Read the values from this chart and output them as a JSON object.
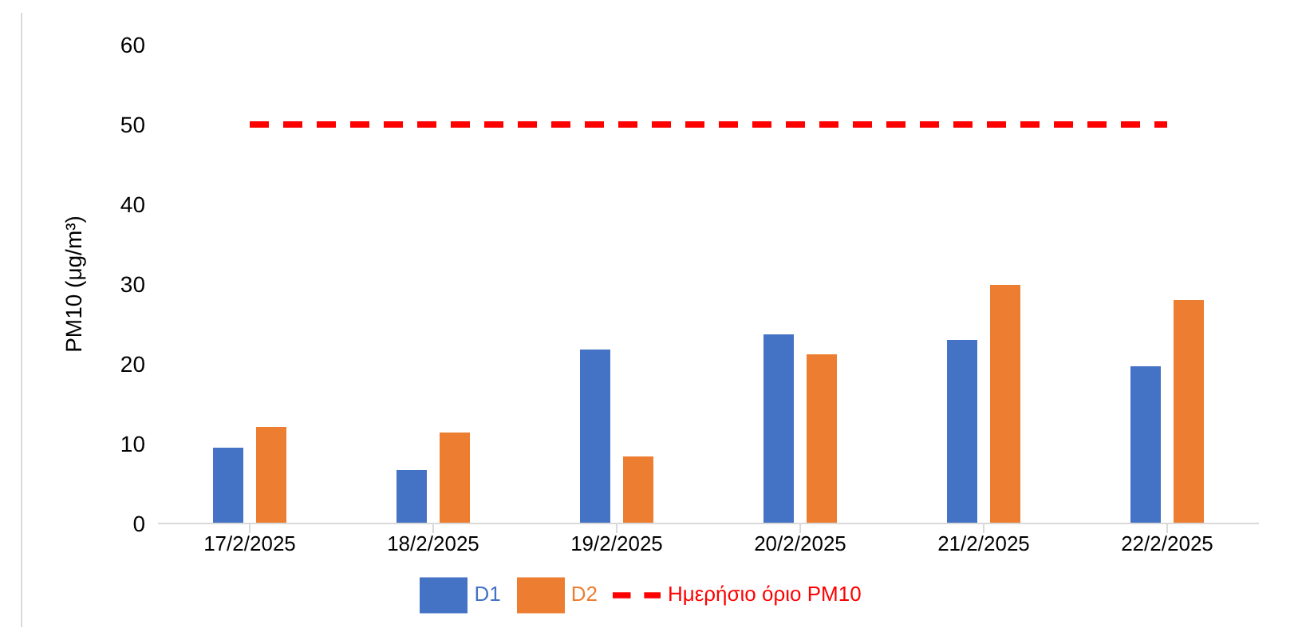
{
  "chart_data": {
    "type": "bar",
    "ylabel": "PM10 (μg/m³)",
    "categories": [
      "17/2/2025",
      "18/2/2025",
      "19/2/2025",
      "20/2/2025",
      "21/2/2025",
      "22/2/2025"
    ],
    "series": [
      {
        "name": "D1",
        "color": "#4472c4",
        "values": [
          9.5,
          6.7,
          21.8,
          23.7,
          23.0,
          19.7
        ]
      },
      {
        "name": "D2",
        "color": "#ed7d31",
        "values": [
          12.1,
          11.4,
          8.4,
          21.2,
          29.9,
          28.0
        ]
      },
      {
        "name": "Ημερήσιο όριο PM10",
        "type": "line",
        "color": "#ff0000",
        "line_style": "dashed",
        "marker": "none",
        "values": [
          50,
          50,
          50,
          50,
          50,
          50
        ]
      }
    ],
    "ylim": [
      0,
      60
    ],
    "yticks": [
      0,
      10,
      20,
      30,
      40,
      50,
      60
    ],
    "grid": false,
    "legend": "bottom"
  }
}
